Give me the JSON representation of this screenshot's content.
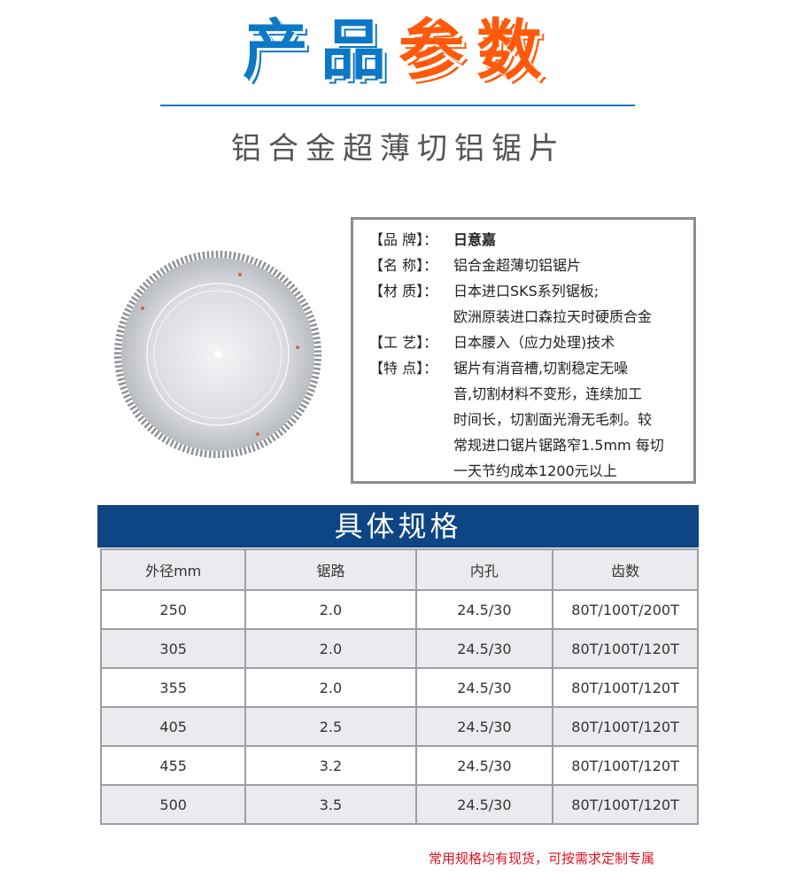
{
  "header": {
    "title_part1": "产品",
    "title_part2": "参数",
    "subtitle": "铝合金超薄切铝锯片"
  },
  "colors": {
    "blue": "#0c78c6",
    "orange": "#ff5a0c",
    "banner": "#0d4585",
    "note": "#e0141e"
  },
  "spec": [
    {
      "label": "【品 牌】：",
      "lines": [
        "日意嘉"
      ]
    },
    {
      "label": "【名 称】：",
      "lines": [
        "铝合金超薄切铝锯片"
      ]
    },
    {
      "label": "【材 质】：",
      "lines": [
        "日本进口SKS系列锯板;",
        "欧洲原装进口森拉天时硬质合金"
      ]
    },
    {
      "label": "【工 艺】：",
      "lines": [
        "日本腰入（应力处理)技术"
      ]
    },
    {
      "label": "【特 点】：",
      "lines": [
        "锯片有消音槽,切割稳定无噪",
        "音,切割材料不变形，连续加工",
        "时间长，切割面光滑无毛刺。较",
        "常规进口锯片锯路窄1.5mm 每切",
        "一天节约成本1200元以上"
      ]
    }
  ],
  "table": {
    "title": "具体规格",
    "headers": [
      "外径mm",
      "锯路",
      "内孔",
      "齿数"
    ],
    "rows": [
      [
        "250",
        "2.0",
        "24.5/30",
        "80T/100T/200T"
      ],
      [
        "305",
        "2.0",
        "24.5/30",
        "80T/100T/120T"
      ],
      [
        "355",
        "2.0",
        "24.5/30",
        "80T/100T/120T"
      ],
      [
        "405",
        "2.5",
        "24.5/30",
        "80T/100T/120T"
      ],
      [
        "455",
        "3.2",
        "24.5/30",
        "80T/100T/120T"
      ],
      [
        "500",
        "3.5",
        "24.5/30",
        "80T/100T/120T"
      ]
    ]
  },
  "note": "常用规格均有现货，可按需求定制专属"
}
